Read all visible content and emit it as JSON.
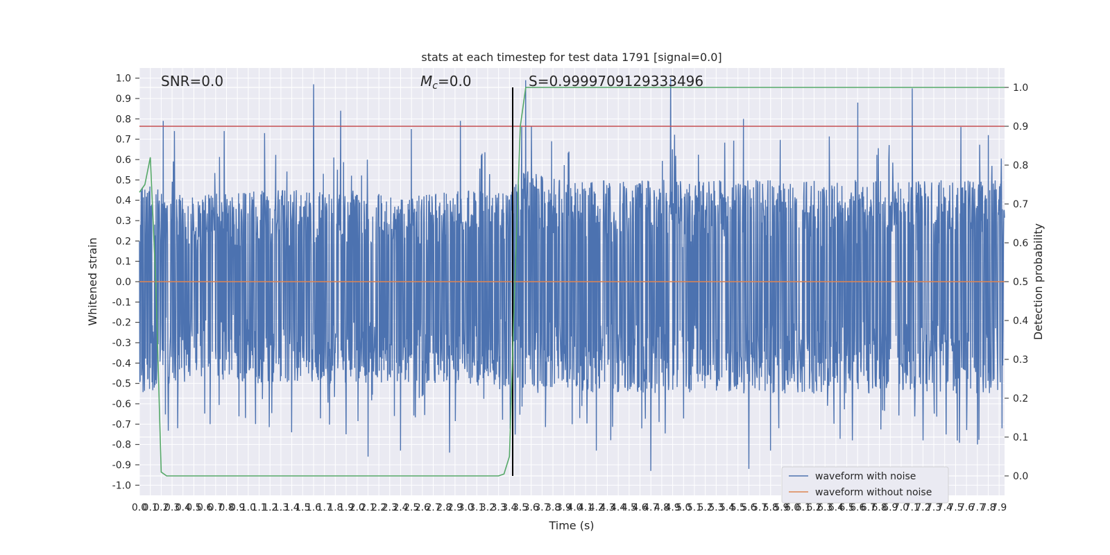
{
  "chart_data": {
    "type": "line",
    "title": "stats at each timestep for test data 1791 [signal=0.0]",
    "xlabel": "Time (s)",
    "ylabel": "Whitened strain",
    "y2label": "Detection probability",
    "xlim": [
      0.0,
      7.95
    ],
    "ylim": [
      -1.05,
      1.05
    ],
    "y2lim": [
      -0.05,
      1.05
    ],
    "x_ticks": [
      0.0,
      0.1,
      0.2,
      0.3,
      0.4,
      0.5,
      0.6,
      0.7,
      0.8,
      0.9,
      1.0,
      1.1,
      1.2,
      1.3,
      1.4,
      1.5,
      1.6,
      1.7,
      1.8,
      1.9,
      2.0,
      2.1,
      2.2,
      2.3,
      2.4,
      2.5,
      2.6,
      2.7,
      2.8,
      2.9,
      3.0,
      3.1,
      3.2,
      3.3,
      3.4,
      3.5,
      3.6,
      3.7,
      3.8,
      3.9,
      4.0,
      4.1,
      4.2,
      4.3,
      4.4,
      4.5,
      4.6,
      4.7,
      4.8,
      4.9,
      5.0,
      5.1,
      5.2,
      5.3,
      5.4,
      5.5,
      5.6,
      5.7,
      5.8,
      5.9,
      6.0,
      6.1,
      6.2,
      6.3,
      6.4,
      6.5,
      6.6,
      6.7,
      6.8,
      6.9,
      7.0,
      7.1,
      7.2,
      7.3,
      7.4,
      7.5,
      7.6,
      7.7,
      7.8,
      7.9
    ],
    "y_ticks": [
      1.0,
      0.9,
      0.8,
      0.7,
      0.6,
      0.5,
      0.4,
      0.3,
      0.2,
      0.1,
      0.0,
      -0.1,
      -0.2,
      -0.3,
      -0.4,
      -0.5,
      -0.6,
      -0.7,
      -0.8,
      -0.9,
      -1.0
    ],
    "y2_ticks": [
      1.0,
      0.9,
      0.8,
      0.7,
      0.6,
      0.5,
      0.4,
      0.3,
      0.2,
      0.1,
      0.0
    ],
    "grid": true,
    "legend_position": "lower-right",
    "series": [
      {
        "name": "waveform with noise",
        "color": "#4c72b0",
        "style": "dense-noise",
        "envelope_upper": [
          [
            0.0,
            0.5
          ],
          [
            0.2,
            0.45
          ],
          [
            0.5,
            0.42
          ],
          [
            1.0,
            0.45
          ],
          [
            1.5,
            0.45
          ],
          [
            2.0,
            0.45
          ],
          [
            2.5,
            0.42
          ],
          [
            3.0,
            0.45
          ],
          [
            3.4,
            0.45
          ],
          [
            3.5,
            0.55
          ],
          [
            4.0,
            0.5
          ],
          [
            4.5,
            0.5
          ],
          [
            5.0,
            0.5
          ],
          [
            5.5,
            0.5
          ],
          [
            6.0,
            0.5
          ],
          [
            6.5,
            0.5
          ],
          [
            7.0,
            0.5
          ],
          [
            7.5,
            0.5
          ],
          [
            7.95,
            0.5
          ]
        ],
        "envelope_lower": [
          [
            0.0,
            -0.55
          ],
          [
            0.5,
            -0.5
          ],
          [
            1.0,
            -0.5
          ],
          [
            1.5,
            -0.5
          ],
          [
            2.0,
            -0.5
          ],
          [
            2.5,
            -0.5
          ],
          [
            3.0,
            -0.5
          ],
          [
            3.5,
            -0.55
          ],
          [
            4.0,
            -0.55
          ],
          [
            4.5,
            -0.55
          ],
          [
            5.0,
            -0.55
          ],
          [
            5.5,
            -0.55
          ],
          [
            6.0,
            -0.55
          ],
          [
            6.5,
            -0.55
          ],
          [
            7.0,
            -0.55
          ],
          [
            7.5,
            -0.55
          ],
          [
            7.95,
            -0.55
          ]
        ],
        "peaks": [
          [
            0.22,
            0.79
          ],
          [
            0.32,
            0.74
          ],
          [
            0.78,
            0.74
          ],
          [
            1.15,
            0.73
          ],
          [
            1.6,
            0.97
          ],
          [
            1.85,
            0.84
          ],
          [
            2.5,
            0.75
          ],
          [
            2.95,
            0.79
          ],
          [
            3.55,
            0.99
          ],
          [
            4.88,
            1.0
          ],
          [
            5.55,
            0.8
          ],
          [
            6.6,
            0.88
          ],
          [
            7.1,
            0.95
          ],
          [
            7.55,
            0.76
          ],
          [
            7.8,
            0.72
          ]
        ],
        "troughs": [
          [
            0.35,
            -0.72
          ],
          [
            0.65,
            -0.7
          ],
          [
            1.4,
            -0.74
          ],
          [
            1.9,
            -0.75
          ],
          [
            2.1,
            -0.86
          ],
          [
            2.4,
            -0.83
          ],
          [
            2.85,
            -0.84
          ],
          [
            4.2,
            -0.83
          ],
          [
            4.7,
            -0.93
          ],
          [
            5.6,
            -0.92
          ],
          [
            5.8,
            -0.83
          ],
          [
            6.55,
            -0.78
          ],
          [
            7.2,
            -0.78
          ],
          [
            7.7,
            -0.8
          ]
        ]
      },
      {
        "name": "waveform without noise",
        "color": "#dd8452",
        "x": [
          0.0,
          7.95
        ],
        "y": [
          0.0,
          0.0
        ]
      },
      {
        "name": "detection probability",
        "axis": "y2",
        "color": "#55a868",
        "x": [
          0.0,
          0.05,
          0.1,
          0.15,
          0.2,
          0.25,
          0.3,
          0.5,
          1.0,
          1.5,
          2.0,
          2.5,
          3.0,
          3.2,
          3.3,
          3.35,
          3.4,
          3.45,
          3.5,
          3.55,
          3.6,
          3.8,
          4.0,
          5.0,
          6.0,
          7.0,
          7.95
        ],
        "y": [
          0.73,
          0.75,
          0.82,
          0.5,
          0.01,
          0.0,
          0.0,
          0.0,
          0.0,
          0.0,
          0.0,
          0.0,
          0.0,
          0.0,
          0.0,
          0.005,
          0.05,
          0.5,
          0.9,
          1.0,
          1.0,
          1.0,
          1.0,
          1.0,
          1.0,
          1.0,
          1.0
        ]
      }
    ],
    "threshold_line": {
      "y2": 0.9,
      "color": "#c44e52"
    },
    "event_line": {
      "x": 3.43,
      "color": "#000000"
    },
    "annotations": {
      "snr": "SNR=0.0",
      "mc_symbol": "M",
      "mc_subscript": "c",
      "mc_value": "=0.0",
      "s": "S=0.9999709129333496"
    }
  }
}
